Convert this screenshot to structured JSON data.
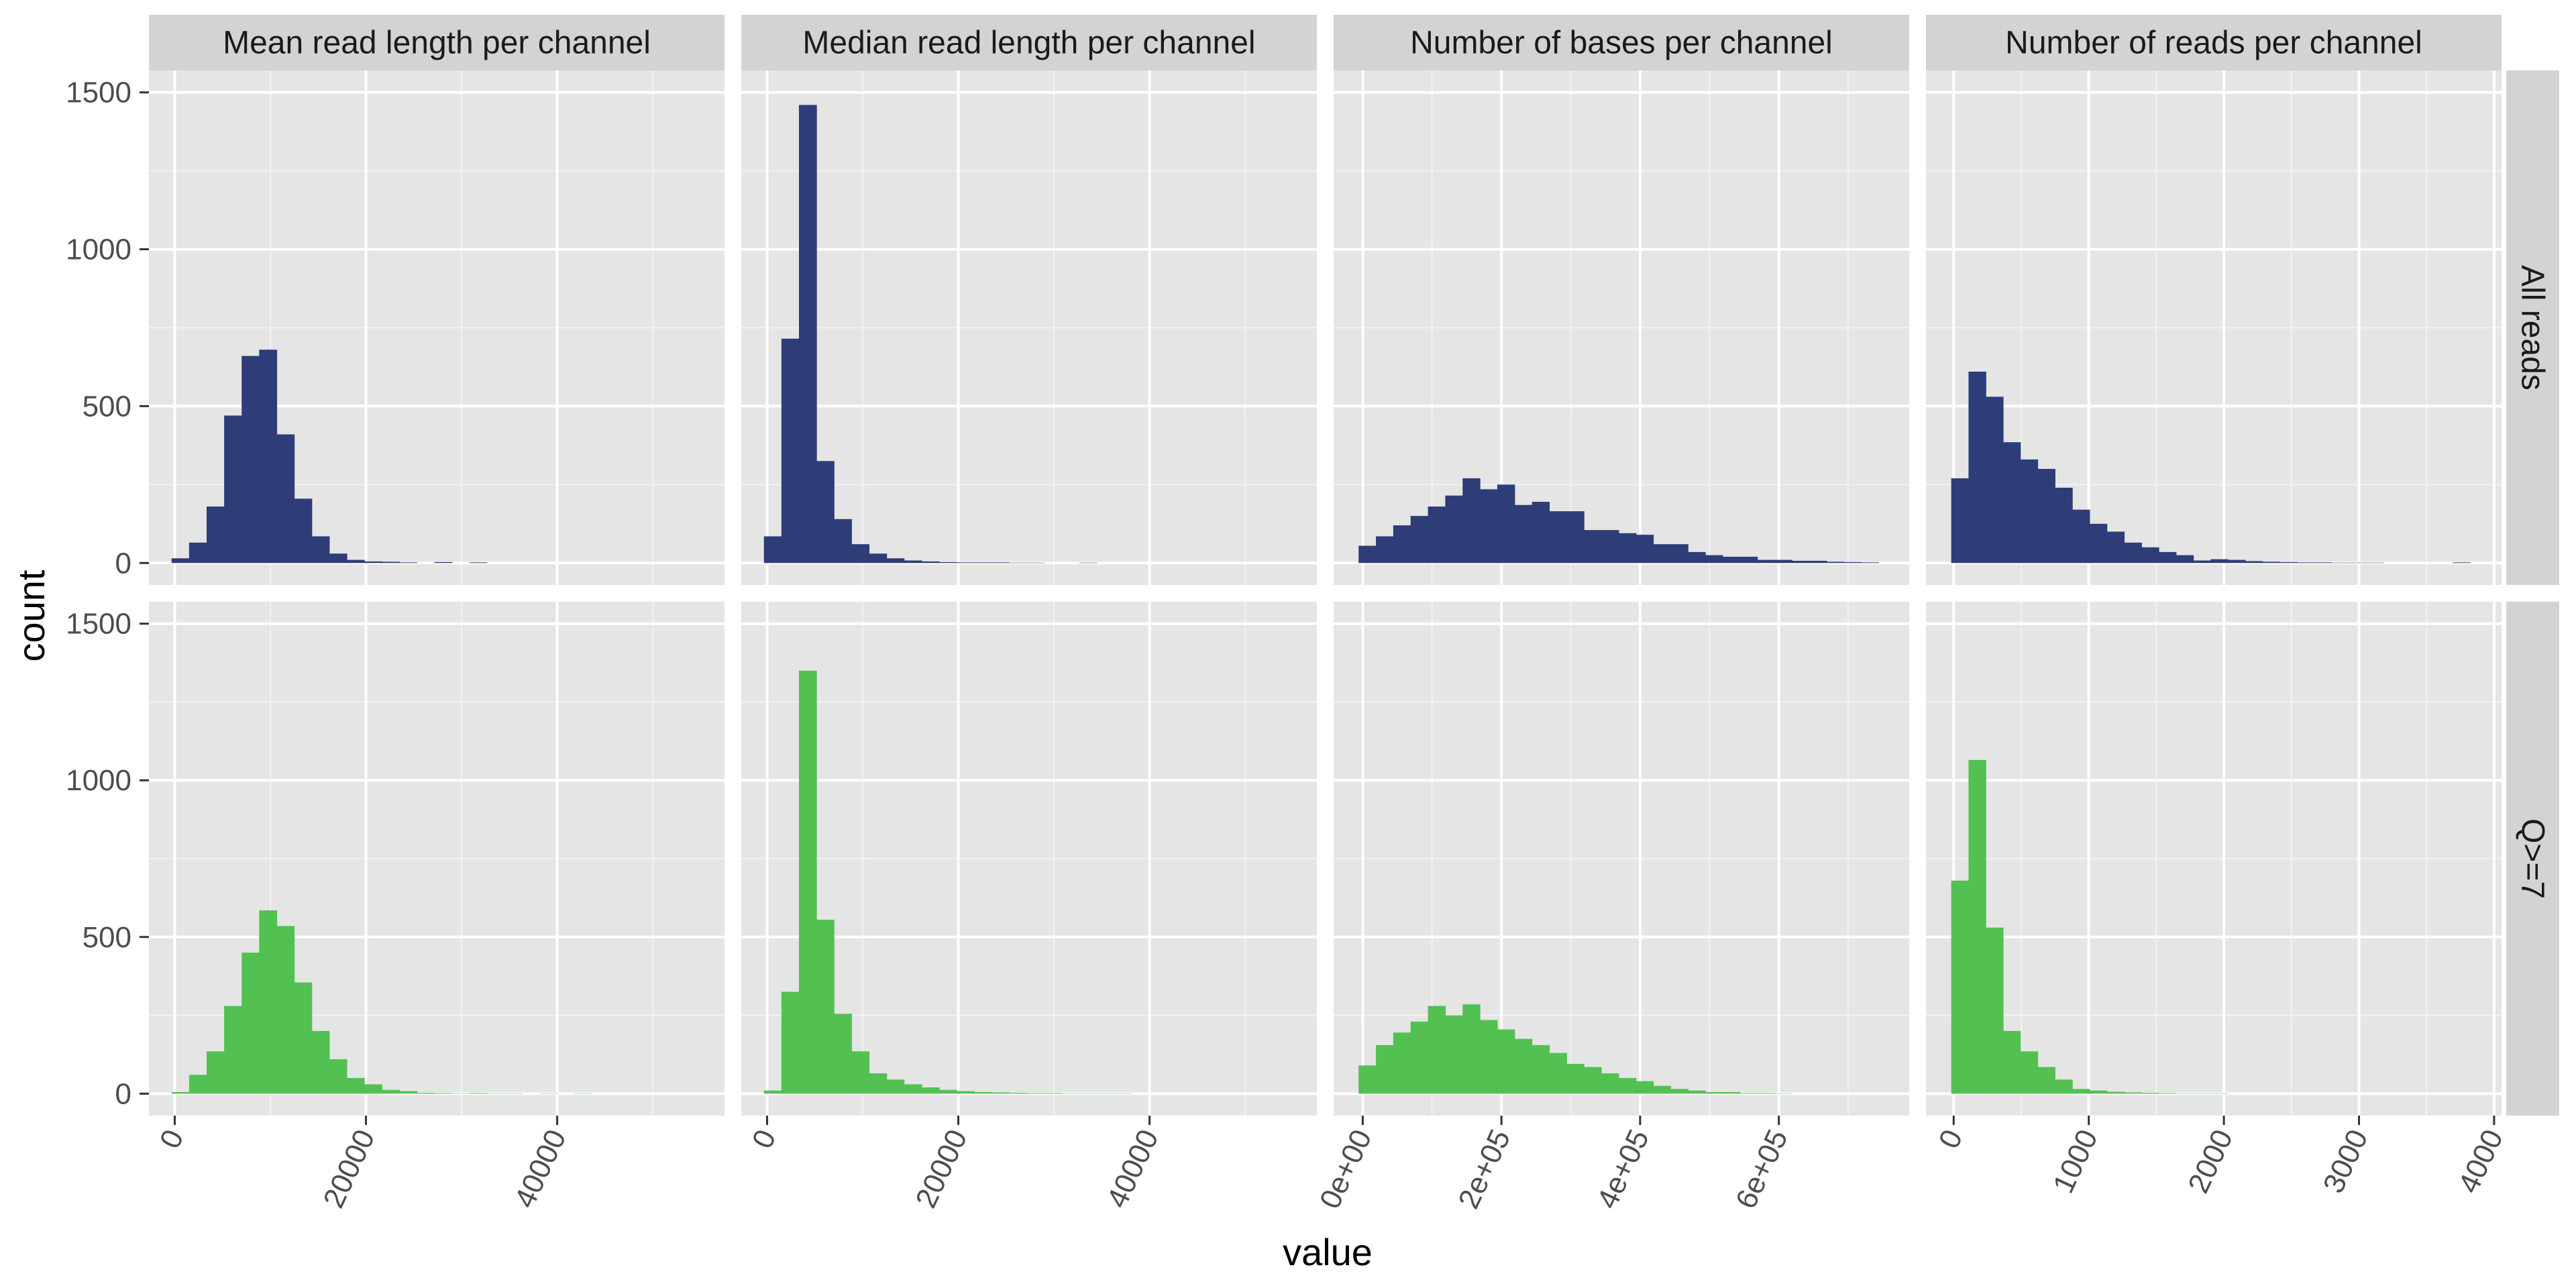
{
  "chart_data": {
    "type": "bar",
    "subtype": "faceted-histogram",
    "xlabel": "value",
    "ylabel": "count",
    "grid": true,
    "legend": "none",
    "colors": {
      "All reads": "#2e3d78",
      "Q>=7": "#52c152"
    },
    "columns": [
      "Mean read length per channel",
      "Median read length per channel",
      "Number of bases per channel",
      "Number of reads per channel"
    ],
    "rows": [
      "All reads",
      "Q>=7"
    ],
    "ylim": [
      -70,
      1570
    ],
    "y_ticks": [
      0,
      500,
      1000,
      1500
    ],
    "y_tick_labels": [
      "0",
      "500",
      "1000",
      "1500"
    ],
    "x_axes": [
      {
        "xlim": [
          -2700,
          57500
        ],
        "ticks": [
          0,
          20000,
          40000
        ],
        "tick_labels": [
          "0",
          "20000",
          "40000"
        ]
      },
      {
        "xlim": [
          -2700,
          57500
        ],
        "ticks": [
          0,
          20000,
          40000
        ],
        "tick_labels": [
          "0",
          "20000",
          "40000"
        ]
      },
      {
        "xlim": [
          -42000,
          788000
        ],
        "ticks": [
          0,
          200000,
          400000,
          600000
        ],
        "tick_labels": [
          "0e+00",
          "2e+05",
          "4e+05",
          "6e+05"
        ]
      },
      {
        "xlim": [
          -205,
          4055
        ],
        "ticks": [
          0,
          1000,
          2000,
          3000,
          4000
        ],
        "tick_labels": [
          "0",
          "1000",
          "2000",
          "3000",
          "4000"
        ]
      }
    ],
    "panels": [
      {
        "column": "Mean read length per channel",
        "row": "All reads",
        "bin_start": -333,
        "bin_width": 1833,
        "values": [
          15,
          65,
          180,
          470,
          660,
          680,
          410,
          205,
          85,
          30,
          10,
          5,
          4,
          2,
          0,
          3,
          0,
          2,
          0,
          0,
          0,
          0,
          0,
          0,
          0,
          0,
          0,
          0,
          0,
          0
        ]
      },
      {
        "column": "Median read length per channel",
        "row": "All reads",
        "bin_start": -333,
        "bin_width": 1833,
        "values": [
          85,
          715,
          1460,
          325,
          140,
          60,
          30,
          15,
          8,
          5,
          3,
          2,
          2,
          2,
          1,
          1,
          0,
          0,
          1,
          0,
          0,
          0,
          0,
          0,
          0,
          0,
          0,
          0,
          0,
          0
        ]
      },
      {
        "column": "Number of bases per channel",
        "row": "All reads",
        "bin_start": -6000,
        "bin_width": 25000,
        "values": [
          55,
          85,
          120,
          150,
          180,
          215,
          270,
          235,
          250,
          185,
          195,
          165,
          165,
          105,
          105,
          95,
          90,
          60,
          60,
          35,
          25,
          20,
          20,
          10,
          10,
          7,
          7,
          4,
          3,
          2
        ]
      },
      {
        "column": "Number of reads per channel",
        "row": "All reads",
        "bin_start": -18,
        "bin_width": 128,
        "values": [
          270,
          610,
          530,
          385,
          330,
          300,
          240,
          170,
          125,
          100,
          65,
          50,
          35,
          25,
          8,
          12,
          10,
          6,
          4,
          3,
          2,
          2,
          1,
          1,
          1,
          0,
          0,
          0,
          0,
          2
        ]
      },
      {
        "column": "Mean read length per channel",
        "row": "Q>=7",
        "bin_start": -333,
        "bin_width": 1833,
        "values": [
          5,
          60,
          135,
          280,
          450,
          585,
          535,
          355,
          200,
          110,
          50,
          30,
          12,
          8,
          3,
          2,
          1,
          2,
          1,
          1,
          0,
          1,
          0,
          1,
          0,
          0,
          0,
          0,
          0,
          0
        ]
      },
      {
        "column": "Median read length per channel",
        "row": "Q>=7",
        "bin_start": -333,
        "bin_width": 1833,
        "values": [
          10,
          325,
          1350,
          555,
          255,
          135,
          65,
          45,
          30,
          20,
          12,
          8,
          5,
          4,
          3,
          2,
          2,
          1,
          1,
          1,
          1,
          0,
          0,
          0,
          0,
          0,
          0,
          0,
          0,
          0
        ]
      },
      {
        "column": "Number of bases per channel",
        "row": "Q>=7",
        "bin_start": -6000,
        "bin_width": 25000,
        "values": [
          90,
          155,
          195,
          230,
          280,
          250,
          285,
          235,
          205,
          175,
          155,
          130,
          95,
          85,
          65,
          50,
          40,
          25,
          15,
          10,
          5,
          5,
          2,
          2,
          1,
          0,
          0,
          0,
          0,
          0
        ]
      },
      {
        "column": "Number of reads per channel",
        "row": "Q>=7",
        "bin_start": -18,
        "bin_width": 128,
        "values": [
          680,
          1065,
          530,
          200,
          135,
          85,
          45,
          15,
          10,
          6,
          4,
          3,
          2,
          1,
          1,
          1,
          0,
          0,
          0,
          0,
          0,
          0,
          0,
          0,
          0,
          0,
          0,
          0,
          0,
          0
        ]
      }
    ]
  }
}
